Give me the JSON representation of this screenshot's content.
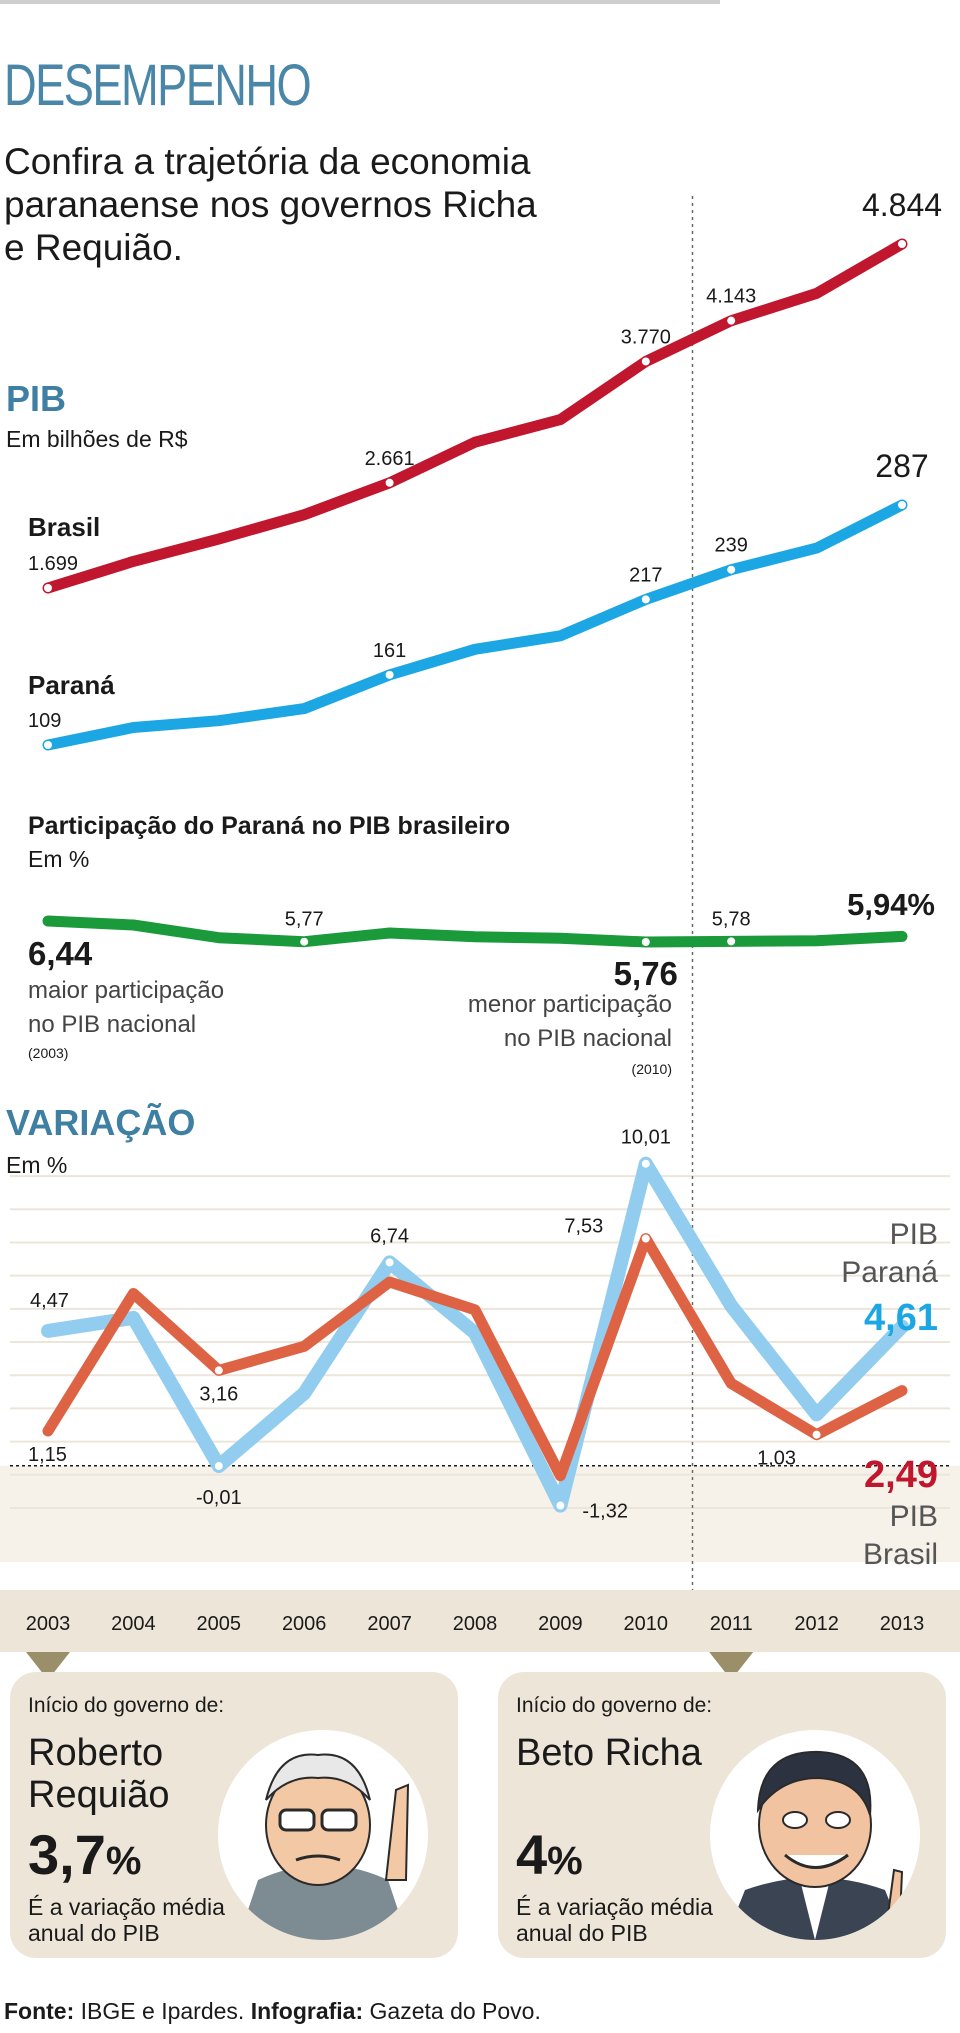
{
  "header": {
    "kicker": "DESEMPENHO",
    "intro": "Confira a trajetória da economia paranaense nos governos Richa e Requião."
  },
  "pib": {
    "title": "PIB",
    "unit": "Em bilhões de R$",
    "brasil_label": "Brasil",
    "parana_label": "Paraná"
  },
  "participacao": {
    "title": "Participação do Paraná no PIB brasileiro",
    "unit": "Em %",
    "max_note": "maior participação no PIB nacional",
    "max_year": "(2003)",
    "min_note": "menor participação no PIB nacional",
    "min_year": "(2010)"
  },
  "variacao": {
    "title": "VARIAÇÃO",
    "unit": "Em %",
    "pib_parana_label": "PIB Paraná",
    "pib_brasil_label": "PIB Brasil"
  },
  "governments": [
    {
      "intro": "Início do governo de:",
      "name": "Roberto Requião",
      "value_number": "3,7",
      "value_unit": "%",
      "caption": "É a variação média anual do PIB",
      "start_year": "2003"
    },
    {
      "intro": "Início do governo de:",
      "name": "Beto Richa",
      "value_number": "4",
      "value_unit": "%",
      "caption": "É a variação média anual do PIB",
      "start_year": "2011"
    }
  ],
  "footer": {
    "source_label": "Fonte:",
    "source": "IBGE e Ipardes.",
    "credit_label": "Infografia:",
    "credit": "Gazeta do Povo."
  },
  "colors": {
    "brasil": "#c0172e",
    "parana": "#1ca7e4",
    "participacao": "#1a9a3b",
    "var_parana": "#92cdef",
    "var_brasil": "#dd6344",
    "accent_title": "#3e7fa3",
    "band": "#ede6d8"
  },
  "chart_data": [
    {
      "type": "line",
      "title": "PIB",
      "ylabel": "Em bilhões de R$",
      "x": [
        "2003",
        "2004",
        "2005",
        "2006",
        "2007",
        "2008",
        "2009",
        "2010",
        "2011",
        "2012",
        "2013"
      ],
      "series": [
        {
          "name": "Brasil",
          "values": [
            1699,
            1942,
            2147,
            2369,
            2661,
            3032,
            3239,
            3770,
            4143,
            4392,
            4844
          ]
        },
        {
          "name": "Paraná",
          "values": [
            109,
            122,
            127,
            136,
            161,
            180,
            190,
            217,
            239,
            255,
            287
          ]
        }
      ],
      "data_labels": {
        "Brasil": {
          "0": "1.699",
          "4": "2.661",
          "7": "3.770",
          "8": "4.143",
          "10": "4.844"
        },
        "Paraná": {
          "0": "109",
          "4": "161",
          "7": "217",
          "8": "239",
          "10": "287"
        }
      }
    },
    {
      "type": "line",
      "title": "Participação do Paraná no PIB brasileiro",
      "ylabel": "Em %",
      "x": [
        "2003",
        "2004",
        "2005",
        "2006",
        "2007",
        "2008",
        "2009",
        "2010",
        "2011",
        "2012",
        "2013"
      ],
      "series": [
        {
          "name": "",
          "values": [
            6.44,
            6.31,
            5.9,
            5.77,
            6.05,
            5.93,
            5.88,
            5.76,
            5.78,
            5.8,
            5.94
          ]
        }
      ],
      "data_labels": {
        "0": "6,44",
        "3": "5,77",
        "7": "5,76",
        "8": "5,78",
        "10": "5,94%"
      }
    },
    {
      "type": "line",
      "title": "VARIAÇÃO",
      "ylabel": "Em %",
      "x": [
        "2003",
        "2004",
        "2005",
        "2006",
        "2007",
        "2008",
        "2009",
        "2010",
        "2011",
        "2012",
        "2013"
      ],
      "ylim": [
        -1.6,
        10.2
      ],
      "series": [
        {
          "name": "PIB Paraná",
          "values": [
            4.47,
            4.9,
            -0.01,
            2.4,
            6.74,
            4.4,
            -1.32,
            10.01,
            5.3,
            1.7,
            4.61
          ]
        },
        {
          "name": "PIB Brasil",
          "values": [
            1.15,
            5.71,
            3.16,
            3.96,
            6.09,
            5.17,
            -0.33,
            7.53,
            2.73,
            1.03,
            2.49
          ]
        }
      ],
      "data_labels": {
        "PIB Paraná": {
          "0": "4,47",
          "2": "-0,01",
          "4": "6,74",
          "6": "-1,32",
          "7": "10,01",
          "10": "4,61"
        },
        "PIB Brasil": {
          "0": "1,15",
          "2": "3,16",
          "7": "7,53",
          "9": "1,03",
          "10": "2,49"
        }
      }
    }
  ]
}
